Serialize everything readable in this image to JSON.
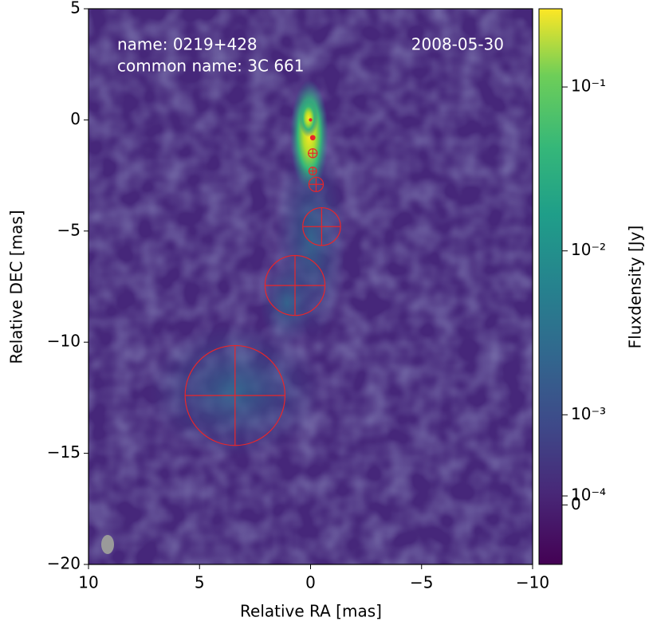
{
  "chart_data": {
    "type": "map",
    "annotations": [
      "name: 0219+428",
      "common name: 3C 661",
      "2008-05-30"
    ],
    "xlabel": "Relative RA [mas]",
    "ylabel": "Relative DEC [mas]",
    "xlim": [
      10,
      -10
    ],
    "ylim": [
      -20,
      5
    ],
    "xticks": [
      10,
      5,
      0,
      {
        "value": -5,
        "label": "−5"
      },
      {
        "value": -10,
        "label": "−10"
      }
    ],
    "yticks": [
      5,
      0,
      {
        "value": -5,
        "label": "−5"
      },
      {
        "value": -10,
        "label": "−10"
      },
      {
        "value": -15,
        "label": "−15"
      },
      {
        "value": -20,
        "label": "−20"
      }
    ],
    "components": {
      "color": "#e8262a",
      "x": [
        0.0,
        -0.1,
        -0.1,
        -0.1,
        -0.25,
        -0.5,
        0.7,
        3.4
      ],
      "y": [
        0.0,
        -0.8,
        -1.5,
        -2.3,
        -2.9,
        -4.8,
        -7.45,
        -12.4
      ],
      "size": [
        0.05,
        0.2,
        0.4,
        0.35,
        0.65,
        1.7,
        2.7,
        4.5
      ]
    },
    "colorbar": {
      "label": "Fluxdensity [Jy]",
      "scale": "symlog",
      "linthresh": 0.001,
      "linscale": 0.55,
      "clim": [
        -0.00066,
        0.3
      ],
      "ticks": [
        {
          "value": 0.1,
          "label": "10⁻¹"
        },
        {
          "value": 0.01,
          "label": "10⁻²"
        },
        {
          "value": 0.001,
          "label": "10⁻³"
        },
        {
          "value": 0.0001,
          "label": "10⁻⁴"
        },
        0
      ]
    }
  }
}
